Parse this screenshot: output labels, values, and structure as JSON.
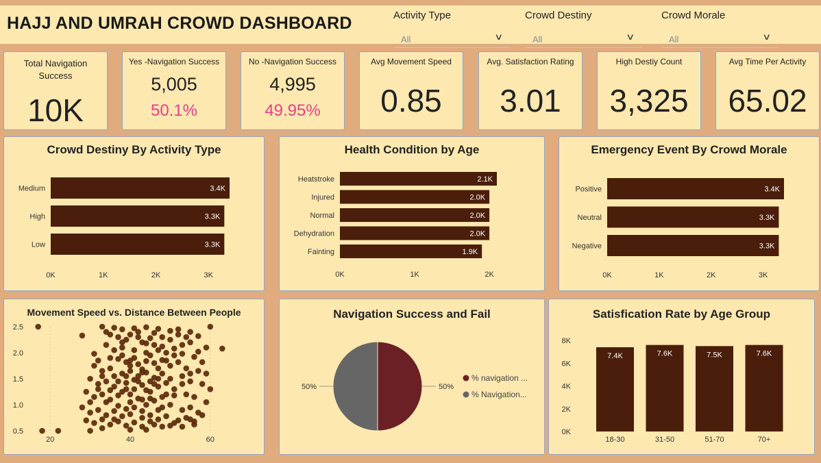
{
  "header": {
    "title": "HAJJ AND UMRAH CROWD DASHBOARD"
  },
  "slicers": [
    {
      "label": "Activity Type",
      "value": "All"
    },
    {
      "label": "Crowd Destiny",
      "value": "All"
    },
    {
      "label": "Crowd Morale",
      "value": "All"
    }
  ],
  "kpis": {
    "total": {
      "label": "Total Navigation Success",
      "value": "10K"
    },
    "yes": {
      "label": "Yes -Navigation Success",
      "value": "5,005",
      "pct": "50.1%"
    },
    "no": {
      "label": "No -Navigation Success",
      "value": "4,995",
      "pct": "49.95%"
    },
    "speed": {
      "label": "Avg Movement Speed",
      "value": "0.85"
    },
    "satisfaction": {
      "label": "Avg. Satisfaction Rating",
      "value": "3.01"
    },
    "density": {
      "label": "High Destiy Count",
      "value": "3,325"
    },
    "time": {
      "label": "Avg Time Per Activity",
      "value": "65.02"
    }
  },
  "colors": {
    "bar": "#4A1E0A",
    "pie_success": "#6B2026",
    "pie_fail": "#666666",
    "pink": "#E83E8C",
    "panel": "#FDE8B0",
    "background": "#E0AC7E"
  },
  "chart_data": [
    {
      "id": "density",
      "type": "bar",
      "orientation": "horizontal",
      "title": "Crowd Destiny By Activity Type",
      "categories": [
        "Medium",
        "High",
        "Low"
      ],
      "values": [
        3400,
        3300,
        3300
      ],
      "labels": [
        "3.4K",
        "3.3K",
        "3.3K"
      ],
      "xticks": [
        "0K",
        "1K",
        "2K",
        "3K"
      ],
      "xlim": [
        0,
        3400
      ]
    },
    {
      "id": "health",
      "type": "bar",
      "orientation": "horizontal",
      "title": "Health Condition by Age",
      "categories": [
        "Heatstroke",
        "Injured",
        "Normal",
        "Dehydration",
        "Fainting"
      ],
      "values": [
        2100,
        2000,
        2000,
        2000,
        1900
      ],
      "labels": [
        "2.1K",
        "2.0K",
        "2.0K",
        "2.0K",
        "1.9K"
      ],
      "xticks": [
        "0K",
        "1K",
        "2K"
      ],
      "xlim": [
        0,
        2100
      ]
    },
    {
      "id": "emergency",
      "type": "bar",
      "orientation": "horizontal",
      "title": "Emergency Event By Crowd Morale",
      "categories": [
        "Positive",
        "Neutral",
        "Negative"
      ],
      "values": [
        3400,
        3300,
        3300
      ],
      "labels": [
        "3.4K",
        "3.3K",
        "3.3K"
      ],
      "xticks": [
        "0K",
        "1K",
        "2K",
        "3K"
      ],
      "xlim": [
        0,
        3400
      ]
    },
    {
      "id": "scatter",
      "type": "scatter",
      "title": "Movement Speed vs. Distance Between People",
      "xticks": [
        "20",
        "40",
        "60"
      ],
      "yticks": [
        "2.5",
        "2.0",
        "1.5",
        "1.0",
        "0.5"
      ],
      "xlim": [
        15,
        65
      ],
      "ylim": [
        0.5,
        2.5
      ],
      "points": [
        [
          17,
          2.5
        ],
        [
          28,
          2.33
        ],
        [
          33,
          2.5
        ],
        [
          36,
          2.48
        ],
        [
          38,
          2.45
        ],
        [
          41,
          2.47
        ],
        [
          44,
          2.49
        ],
        [
          47,
          2.46
        ],
        [
          52,
          2.45
        ],
        [
          60,
          2.5
        ],
        [
          63,
          2.08
        ],
        [
          57,
          2.02
        ],
        [
          22,
          0.5
        ],
        [
          18,
          0.5
        ],
        [
          30,
          0.5
        ],
        [
          33,
          0.55
        ],
        [
          40,
          0.52
        ],
        [
          44,
          0.52
        ],
        [
          50,
          0.6
        ],
        [
          56,
          0.62
        ],
        [
          35,
          2.35
        ],
        [
          37,
          2.3
        ],
        [
          39,
          2.25
        ],
        [
          40,
          2.35
        ],
        [
          42,
          2.3
        ],
        [
          43,
          2.2
        ],
        [
          45,
          2.28
        ],
        [
          46,
          2.15
        ],
        [
          48,
          2.3
        ],
        [
          50,
          2.25
        ],
        [
          52,
          2.35
        ],
        [
          54,
          2.3
        ],
        [
          55,
          2.2
        ],
        [
          57,
          2.32
        ],
        [
          59,
          2.1
        ],
        [
          34,
          2.15
        ],
        [
          36,
          2.05
        ],
        [
          38,
          2.1
        ],
        [
          41,
          2.05
        ],
        [
          44,
          2.0
        ],
        [
          47,
          2.05
        ],
        [
          49,
          2.0
        ],
        [
          51,
          2.08
        ],
        [
          53,
          1.98
        ],
        [
          56,
          1.92
        ],
        [
          58,
          1.82
        ],
        [
          31,
          1.98
        ],
        [
          32,
          1.85
        ],
        [
          35,
          1.9
        ],
        [
          37,
          1.88
        ],
        [
          39,
          1.82
        ],
        [
          42,
          1.78
        ],
        [
          44,
          1.84
        ],
        [
          46,
          1.8
        ],
        [
          48,
          1.86
        ],
        [
          50,
          1.75
        ],
        [
          52,
          1.82
        ],
        [
          54,
          1.7
        ],
        [
          57,
          1.65
        ],
        [
          59,
          1.6
        ],
        [
          31,
          1.75
        ],
        [
          33,
          1.65
        ],
        [
          35,
          1.7
        ],
        [
          38,
          1.6
        ],
        [
          40,
          1.65
        ],
        [
          42,
          1.55
        ],
        [
          44,
          1.62
        ],
        [
          46,
          1.52
        ],
        [
          48,
          1.6
        ],
        [
          50,
          1.5
        ],
        [
          53,
          1.55
        ],
        [
          55,
          1.45
        ],
        [
          58,
          1.4
        ],
        [
          60,
          1.3
        ],
        [
          30,
          1.5
        ],
        [
          32,
          1.4
        ],
        [
          34,
          1.45
        ],
        [
          36,
          1.35
        ],
        [
          39,
          1.42
        ],
        [
          41,
          1.3
        ],
        [
          43,
          1.38
        ],
        [
          45,
          1.25
        ],
        [
          47,
          1.35
        ],
        [
          49,
          1.2
        ],
        [
          51,
          1.3
        ],
        [
          54,
          1.2
        ],
        [
          56,
          1.15
        ],
        [
          59,
          1.05
        ],
        [
          29,
          1.25
        ],
        [
          31,
          1.15
        ],
        [
          33,
          1.2
        ],
        [
          35,
          1.1
        ],
        [
          37,
          1.18
        ],
        [
          40,
          1.05
        ],
        [
          42,
          1.12
        ],
        [
          44,
          1.0
        ],
        [
          46,
          1.08
        ],
        [
          48,
          0.95
        ],
        [
          50,
          1.0
        ],
        [
          53,
          0.9
        ],
        [
          55,
          0.95
        ],
        [
          57,
          0.85
        ],
        [
          28,
          0.95
        ],
        [
          30,
          0.85
        ],
        [
          32,
          0.9
        ],
        [
          34,
          0.8
        ],
        [
          36,
          0.88
        ],
        [
          38,
          0.78
        ],
        [
          40,
          0.82
        ],
        [
          43,
          0.75
        ],
        [
          45,
          0.8
        ],
        [
          47,
          0.72
        ],
        [
          49,
          0.78
        ],
        [
          52,
          0.7
        ],
        [
          54,
          0.75
        ],
        [
          56,
          0.68
        ],
        [
          58,
          0.8
        ],
        [
          29,
          0.7
        ],
        [
          31,
          0.65
        ],
        [
          33,
          0.72
        ],
        [
          35,
          0.62
        ],
        [
          37,
          0.68
        ],
        [
          39,
          0.6
        ],
        [
          41,
          0.66
        ],
        [
          43,
          0.58
        ],
        [
          46,
          0.62
        ],
        [
          48,
          0.58
        ],
        [
          51,
          0.65
        ],
        [
          53,
          0.58
        ],
        [
          55,
          0.72
        ],
        [
          38,
          1.95
        ],
        [
          40,
          1.75
        ],
        [
          41,
          1.9
        ],
        [
          43,
          1.68
        ],
        [
          45,
          1.95
        ],
        [
          45,
          1.45
        ],
        [
          47,
          1.7
        ],
        [
          39,
          1.3
        ],
        [
          42,
          1.45
        ],
        [
          44,
          1.28
        ],
        [
          36,
          1.55
        ],
        [
          38,
          1.25
        ],
        [
          40,
          1.2
        ],
        [
          43,
          1.1
        ],
        [
          46,
          1.4
        ],
        [
          48,
          1.15
        ],
        [
          37,
          0.98
        ],
        [
          39,
          0.92
        ],
        [
          41,
          0.95
        ],
        [
          43,
          0.88
        ],
        [
          45,
          0.68
        ],
        [
          47,
          0.9
        ],
        [
          36,
          0.72
        ],
        [
          34,
          1.05
        ],
        [
          32,
          1.3
        ],
        [
          30,
          1.05
        ],
        [
          33,
          1.55
        ],
        [
          35,
          1.28
        ],
        [
          37,
          1.45
        ],
        [
          39,
          1.55
        ],
        [
          41,
          1.48
        ],
        [
          43,
          1.62
        ],
        [
          45,
          1.12
        ],
        [
          47,
          1.5
        ],
        [
          49,
          1.42
        ],
        [
          51,
          1.18
        ],
        [
          53,
          1.4
        ],
        [
          55,
          1.6
        ],
        [
          49,
          1.85
        ],
        [
          51,
          1.95
        ],
        [
          53,
          2.15
        ],
        [
          42,
          2.4
        ],
        [
          46,
          2.38
        ],
        [
          50,
          2.42
        ],
        [
          55,
          2.4
        ],
        [
          38,
          2.2
        ],
        [
          34,
          2.4
        ],
        [
          40,
          1.85
        ],
        [
          44,
          2.18
        ],
        [
          48,
          2.12
        ]
      ]
    },
    {
      "id": "pie",
      "type": "pie",
      "title": "Navigation Success and Fail",
      "slices": [
        {
          "name": "% navigation ...",
          "value": 50,
          "label": "50%"
        },
        {
          "name": "% Navigation...",
          "value": 50,
          "label": "50%"
        }
      ]
    },
    {
      "id": "agegroup",
      "type": "bar",
      "orientation": "vertical",
      "title": "Satisfication Rate by Age Group",
      "categories": [
        "18-30",
        "31-50",
        "51-70",
        "70+"
      ],
      "values": [
        7400,
        7600,
        7500,
        7600
      ],
      "labels": [
        "7.4K",
        "7.6K",
        "7.5K",
        "7.6K"
      ],
      "yticks": [
        "8K",
        "6K",
        "4K",
        "2K",
        "0K"
      ],
      "ylim": [
        0,
        8000
      ]
    }
  ]
}
